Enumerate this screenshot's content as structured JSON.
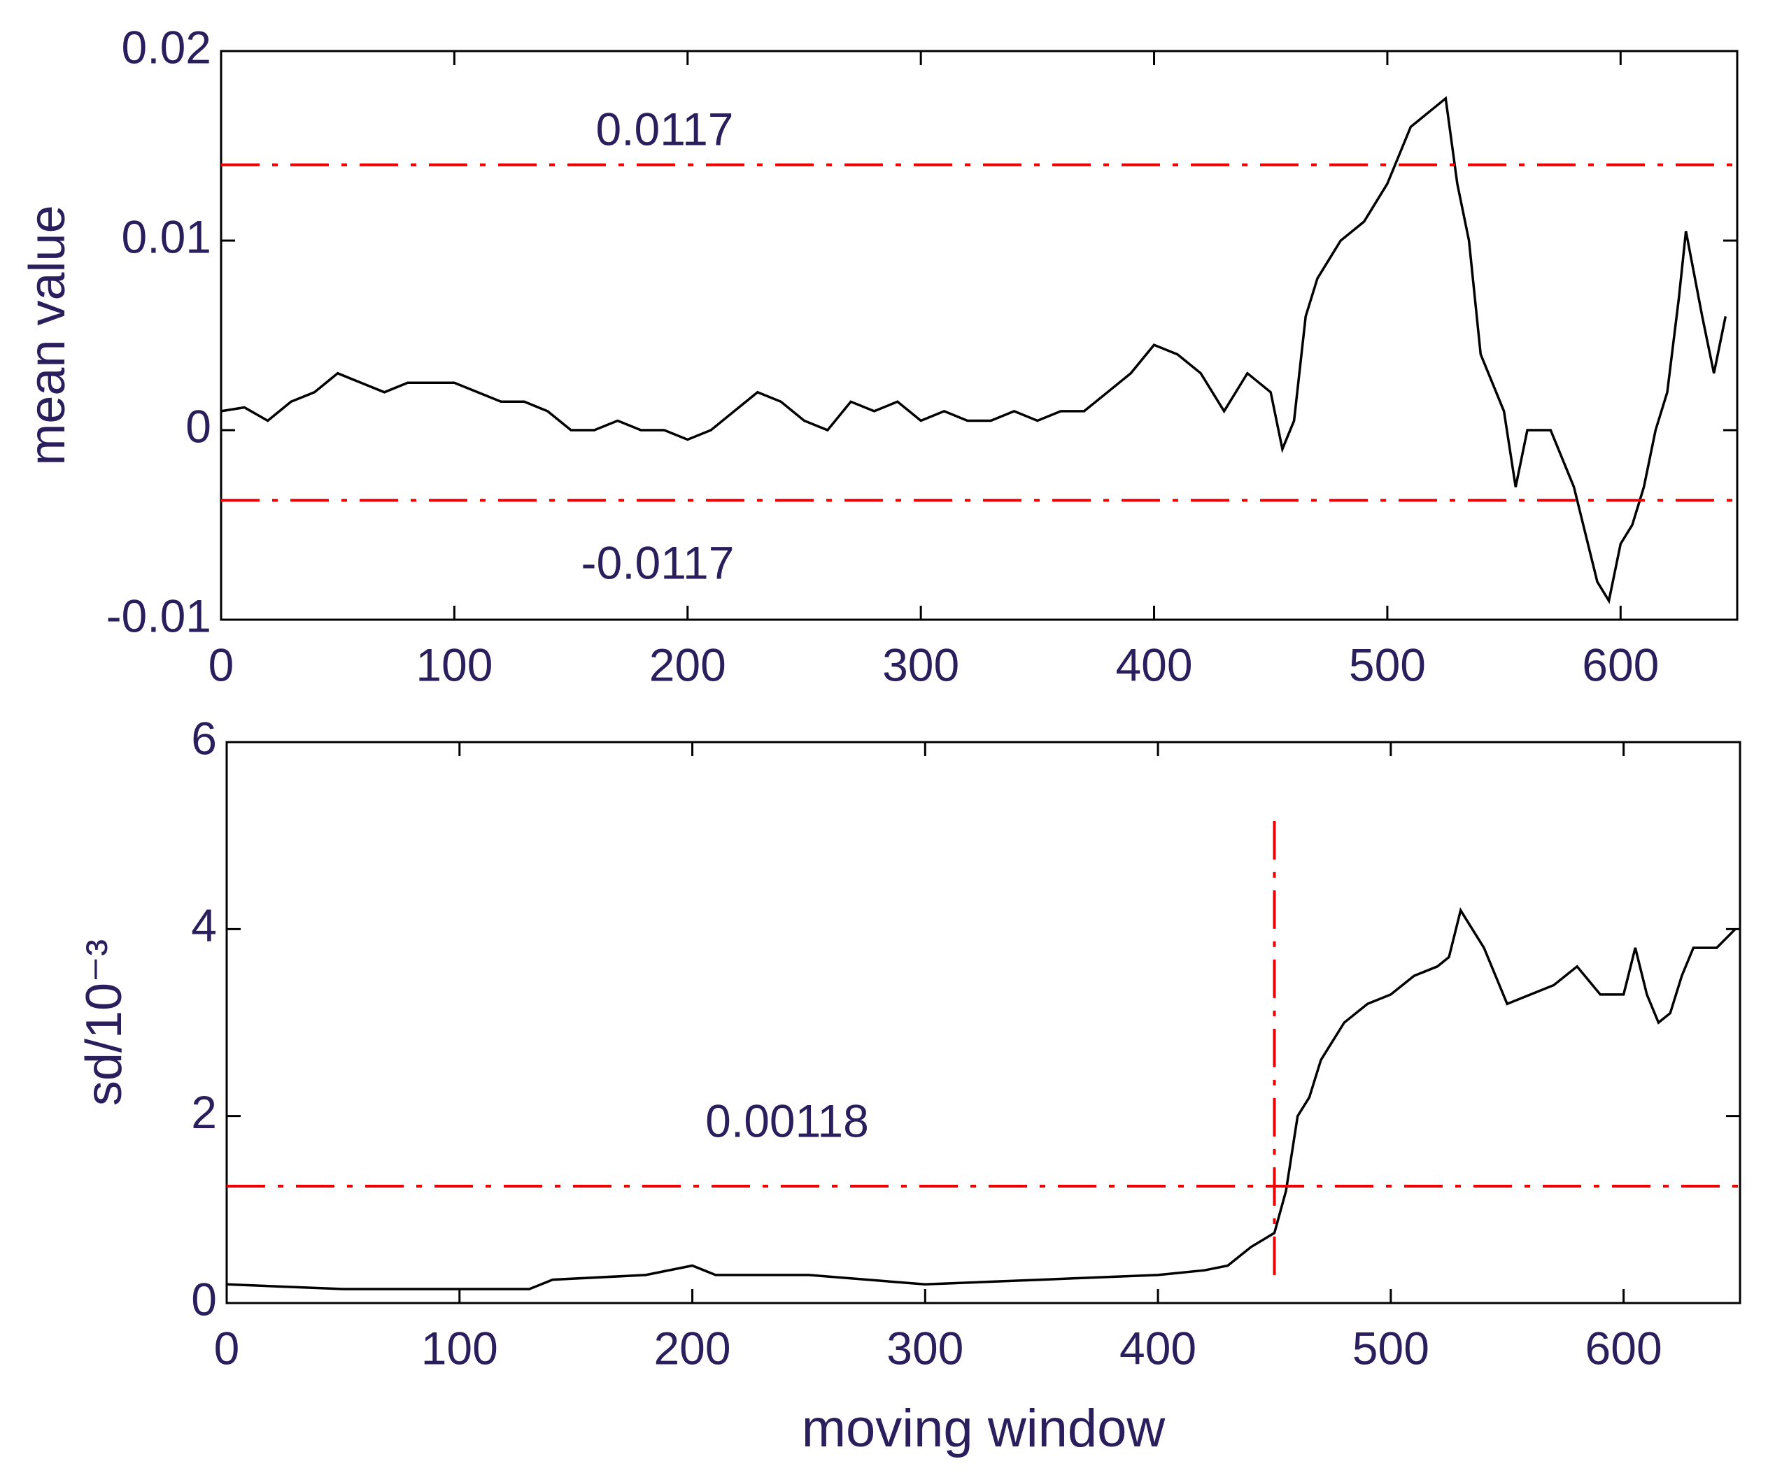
{
  "chart_data": [
    {
      "type": "line",
      "ylabel": "mean value",
      "color": "#000000",
      "threshold_color": "#ee0000",
      "xlim": [
        0,
        650
      ],
      "xticks": [
        0,
        100,
        200,
        300,
        400,
        500,
        600
      ],
      "ylim": [
        -0.01,
        0.02
      ],
      "yticks": [
        -0.01,
        0,
        0.01,
        0.02
      ],
      "hlines": [
        0.014,
        -0.0037
      ],
      "annotations": [
        "0.0117",
        "-0.0117"
      ],
      "x": [
        0,
        10,
        20,
        30,
        40,
        50,
        60,
        70,
        80,
        90,
        100,
        110,
        120,
        130,
        140,
        150,
        160,
        170,
        180,
        190,
        200,
        210,
        220,
        230,
        240,
        250,
        260,
        270,
        280,
        290,
        300,
        310,
        320,
        330,
        340,
        350,
        360,
        370,
        380,
        390,
        400,
        410,
        420,
        430,
        440,
        450,
        455,
        460,
        465,
        470,
        480,
        490,
        500,
        510,
        520,
        525,
        530,
        535,
        540,
        550,
        555,
        560,
        570,
        580,
        590,
        595,
        600,
        605,
        610,
        615,
        620,
        625,
        628,
        635,
        640,
        645
      ],
      "values": [
        0.001,
        0.0012,
        0.0005,
        0.0015,
        0.002,
        0.003,
        0.0025,
        0.002,
        0.0025,
        0.0025,
        0.0025,
        0.002,
        0.0015,
        0.0015,
        0.001,
        0,
        0,
        0.0005,
        0,
        0,
        -0.0005,
        0,
        0.001,
        0.002,
        0.0015,
        0.0005,
        0,
        0.0015,
        0.001,
        0.0015,
        0.0005,
        0.001,
        0.0005,
        0.0005,
        0.001,
        0.0005,
        0.001,
        0.001,
        0.002,
        0.003,
        0.0045,
        0.004,
        0.003,
        0.001,
        0.003,
        0.002,
        -0.001,
        0.0005,
        0.006,
        0.008,
        0.01,
        0.011,
        0.013,
        0.016,
        0.017,
        0.0175,
        0.013,
        0.01,
        0.004,
        0.001,
        -0.003,
        0,
        0,
        -0.003,
        -0.008,
        -0.009,
        -0.006,
        -0.005,
        -0.003,
        0,
        0.002,
        0.007,
        0.0105,
        0.006,
        0.003,
        0.006
      ]
    },
    {
      "type": "line",
      "ylabel": "sd/10⁻³",
      "xlabel": "moving window",
      "color": "#000000",
      "threshold_color": "#ee0000",
      "xlim": [
        0,
        650
      ],
      "xticks": [
        0,
        100,
        200,
        300,
        400,
        500,
        600
      ],
      "ylim": [
        0,
        6
      ],
      "yticks": [
        0,
        2,
        4,
        6
      ],
      "hlines": [
        1.25
      ],
      "annotations": [
        "0.00118"
      ],
      "vline": {
        "x": 450,
        "ylim": [
          0.3,
          5.2
        ]
      },
      "x": [
        0,
        50,
        100,
        130,
        140,
        180,
        200,
        210,
        250,
        300,
        350,
        400,
        420,
        430,
        440,
        450,
        455,
        460,
        465,
        470,
        480,
        490,
        500,
        510,
        520,
        525,
        530,
        535,
        540,
        550,
        560,
        570,
        580,
        590,
        600,
        605,
        610,
        615,
        620,
        625,
        630,
        640,
        648
      ],
      "values": [
        0.2,
        0.15,
        0.15,
        0.15,
        0.25,
        0.3,
        0.4,
        0.3,
        0.3,
        0.2,
        0.25,
        0.3,
        0.35,
        0.4,
        0.6,
        0.75,
        1.2,
        2,
        2.2,
        2.6,
        3,
        3.2,
        3.3,
        3.5,
        3.6,
        3.7,
        4.2,
        4,
        3.8,
        3.2,
        3.3,
        3.4,
        3.6,
        3.3,
        3.3,
        3.8,
        3.3,
        3,
        3.1,
        3.5,
        3.8,
        3.8,
        4
      ]
    }
  ]
}
